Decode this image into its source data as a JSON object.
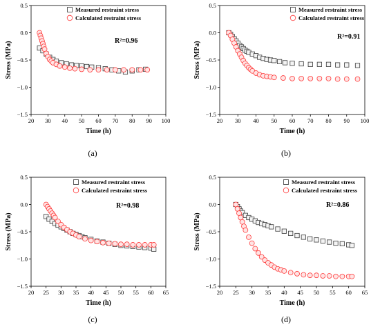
{
  "colors": {
    "measured": "#3a3a3a",
    "calculated": "#ff3b3b",
    "calculated_fill": "#ffe4e4",
    "axis": "#000000"
  },
  "chart_data": [
    {
      "type": "scatter",
      "panel_label": "(a)",
      "annotation": "R²=0.96",
      "xlabel": "Time (h)",
      "ylabel": "Stress (MPa)",
      "xlim": [
        20,
        100
      ],
      "ylim": [
        -1.5,
        0.5
      ],
      "xticks": [
        20,
        30,
        40,
        50,
        60,
        70,
        80,
        90,
        100
      ],
      "yticks": [
        0.5,
        0.0,
        -0.5,
        -1.0,
        -1.5
      ],
      "ytick_labels": [
        "0.5",
        "0.0",
        "−0.5",
        "−1.0",
        "−1.5"
      ],
      "legend": "top-center",
      "grid": false,
      "series": [
        {
          "name": "Measured restraint stress",
          "marker": "square",
          "x": [
            25,
            27,
            29,
            31,
            33,
            35,
            38,
            41,
            44,
            47,
            50,
            53,
            56,
            60,
            64,
            68,
            72,
            76,
            80,
            84,
            88
          ],
          "y": [
            -0.28,
            -0.33,
            -0.39,
            -0.45,
            -0.49,
            -0.52,
            -0.55,
            -0.57,
            -0.59,
            -0.6,
            -0.61,
            -0.62,
            -0.63,
            -0.64,
            -0.66,
            -0.68,
            -0.7,
            -0.72,
            -0.7,
            -0.68,
            -0.67
          ]
        },
        {
          "name": "Calculated restraint stress",
          "marker": "circle",
          "x": [
            25,
            25.5,
            26,
            26.5,
            27,
            27.5,
            28,
            29,
            30,
            31,
            32,
            33,
            35,
            37,
            40,
            43,
            46,
            50,
            55,
            60,
            65,
            70,
            75,
            80,
            85,
            89
          ],
          "y": [
            0.0,
            -0.05,
            -0.1,
            -0.15,
            -0.2,
            -0.25,
            -0.3,
            -0.38,
            -0.44,
            -0.49,
            -0.52,
            -0.55,
            -0.58,
            -0.61,
            -0.63,
            -0.65,
            -0.66,
            -0.67,
            -0.68,
            -0.68,
            -0.68,
            -0.68,
            -0.68,
            -0.68,
            -0.68,
            -0.68
          ]
        }
      ]
    },
    {
      "type": "scatter",
      "panel_label": "(b)",
      "annotation": "R²=0.91",
      "xlabel": "Time (h)",
      "ylabel": "Stress (MPa)",
      "xlim": [
        20,
        100
      ],
      "ylim": [
        -1.5,
        0.5
      ],
      "xticks": [
        20,
        30,
        40,
        50,
        60,
        70,
        80,
        90,
        100
      ],
      "yticks": [
        0.5,
        0.0,
        -0.5,
        -1.0,
        -1.5
      ],
      "ytick_labels": [
        "0.5",
        "0.0",
        "−0.5",
        "−1.0",
        "−1.5"
      ],
      "legend": "top-right",
      "grid": false,
      "series": [
        {
          "name": "Measured restraint stress",
          "marker": "square",
          "x": [
            25,
            26,
            27,
            28,
            29,
            30,
            31,
            32,
            33,
            34,
            35,
            36,
            38,
            40,
            42,
            44,
            46,
            48,
            50,
            53,
            56,
            60,
            65,
            70,
            75,
            80,
            85,
            90,
            96
          ],
          "y": [
            0.0,
            -0.03,
            -0.07,
            -0.11,
            -0.15,
            -0.19,
            -0.23,
            -0.26,
            -0.29,
            -0.32,
            -0.34,
            -0.36,
            -0.39,
            -0.42,
            -0.45,
            -0.47,
            -0.49,
            -0.5,
            -0.51,
            -0.53,
            -0.55,
            -0.56,
            -0.57,
            -0.58,
            -0.58,
            -0.58,
            -0.59,
            -0.59,
            -0.6
          ]
        },
        {
          "name": "Calculated restraint stress",
          "marker": "circle",
          "x": [
            25,
            26,
            27,
            28,
            29,
            30,
            31,
            32,
            33,
            34,
            35,
            36,
            37,
            38,
            40,
            42,
            44,
            46,
            48,
            50,
            55,
            60,
            65,
            70,
            75,
            80,
            85,
            90,
            96
          ],
          "y": [
            0.0,
            -0.05,
            -0.12,
            -0.19,
            -0.26,
            -0.33,
            -0.39,
            -0.45,
            -0.51,
            -0.56,
            -0.6,
            -0.64,
            -0.67,
            -0.7,
            -0.74,
            -0.77,
            -0.79,
            -0.8,
            -0.81,
            -0.82,
            -0.83,
            -0.84,
            -0.84,
            -0.84,
            -0.84,
            -0.84,
            -0.85,
            -0.85,
            -0.85
          ]
        }
      ]
    },
    {
      "type": "scatter",
      "panel_label": "(c)",
      "annotation": "R²=0.98",
      "xlabel": "Time (h)",
      "ylabel": "Stress (MPa)",
      "xlim": [
        20,
        65
      ],
      "ylim": [
        -1.5,
        0.5
      ],
      "xticks": [
        20,
        25,
        30,
        35,
        40,
        45,
        50,
        55,
        60,
        65
      ],
      "yticks": [
        0.5,
        0.0,
        -0.5,
        -1.0,
        -1.5
      ],
      "ytick_labels": [
        "0.5",
        "0.0",
        "−0.5",
        "−1.0",
        "−1.5"
      ],
      "legend": "top-right",
      "grid": false,
      "series": [
        {
          "name": "Measured restraint stress",
          "marker": "square",
          "x": [
            25,
            26,
            27,
            28,
            29,
            30,
            31,
            32,
            33,
            34,
            35,
            36,
            37,
            38,
            40,
            42,
            44,
            46,
            48,
            50,
            52,
            54,
            56,
            58,
            60,
            61
          ],
          "y": [
            -0.22,
            -0.27,
            -0.31,
            -0.35,
            -0.38,
            -0.41,
            -0.44,
            -0.47,
            -0.5,
            -0.53,
            -0.55,
            -0.57,
            -0.59,
            -0.61,
            -0.64,
            -0.67,
            -0.69,
            -0.71,
            -0.73,
            -0.75,
            -0.76,
            -0.77,
            -0.78,
            -0.79,
            -0.8,
            -0.82
          ]
        },
        {
          "name": "Calculated restraint stress",
          "marker": "circle",
          "x": [
            25,
            25.5,
            26,
            26.5,
            27,
            27.5,
            28,
            29,
            30,
            31,
            32,
            33,
            34,
            35,
            36,
            38,
            40,
            42,
            44,
            46,
            48,
            50,
            52,
            54,
            56,
            58,
            60,
            61
          ],
          "y": [
            0.0,
            -0.04,
            -0.08,
            -0.12,
            -0.16,
            -0.2,
            -0.24,
            -0.31,
            -0.37,
            -0.42,
            -0.46,
            -0.5,
            -0.53,
            -0.56,
            -0.59,
            -0.63,
            -0.66,
            -0.68,
            -0.7,
            -0.71,
            -0.72,
            -0.73,
            -0.73,
            -0.74,
            -0.74,
            -0.74,
            -0.74,
            -0.74
          ]
        }
      ]
    },
    {
      "type": "scatter",
      "panel_label": "(d)",
      "annotation": "R²=0.86",
      "xlabel": "Time (h)",
      "ylabel": "Stress (MPa)",
      "xlim": [
        20,
        65
      ],
      "ylim": [
        -1.5,
        0.5
      ],
      "xticks": [
        20,
        25,
        30,
        35,
        40,
        45,
        50,
        55,
        60,
        65
      ],
      "yticks": [
        0.5,
        0.0,
        -0.5,
        -1.0,
        -1.5
      ],
      "ytick_labels": [
        "0.5",
        "0.0",
        "−0.5",
        "−1.0",
        "−1.5"
      ],
      "legend": "top-right",
      "grid": false,
      "series": [
        {
          "name": "Measured restraint stress",
          "marker": "square",
          "x": [
            25,
            25.5,
            26,
            26.5,
            27,
            28,
            29,
            30,
            31,
            32,
            33,
            34,
            35,
            36,
            38,
            40,
            42,
            44,
            46,
            48,
            50,
            52,
            54,
            56,
            58,
            60,
            61
          ],
          "y": [
            0.0,
            -0.04,
            -0.08,
            -0.12,
            -0.15,
            -0.2,
            -0.24,
            -0.27,
            -0.3,
            -0.33,
            -0.35,
            -0.37,
            -0.39,
            -0.41,
            -0.45,
            -0.49,
            -0.53,
            -0.57,
            -0.6,
            -0.63,
            -0.65,
            -0.67,
            -0.69,
            -0.71,
            -0.72,
            -0.74,
            -0.75
          ]
        },
        {
          "name": "Calculated restraint stress",
          "marker": "circle",
          "x": [
            25,
            25.5,
            26,
            26.5,
            27,
            27.5,
            28,
            29,
            30,
            31,
            32,
            33,
            34,
            35,
            36,
            37,
            38,
            39,
            40,
            42,
            44,
            46,
            48,
            50,
            52,
            54,
            56,
            58,
            60,
            61
          ],
          "y": [
            0.0,
            -0.08,
            -0.16,
            -0.24,
            -0.32,
            -0.4,
            -0.47,
            -0.6,
            -0.71,
            -0.81,
            -0.89,
            -0.96,
            -1.02,
            -1.07,
            -1.11,
            -1.15,
            -1.18,
            -1.2,
            -1.22,
            -1.25,
            -1.27,
            -1.29,
            -1.3,
            -1.3,
            -1.31,
            -1.31,
            -1.32,
            -1.32,
            -1.32,
            -1.32
          ]
        }
      ]
    }
  ]
}
